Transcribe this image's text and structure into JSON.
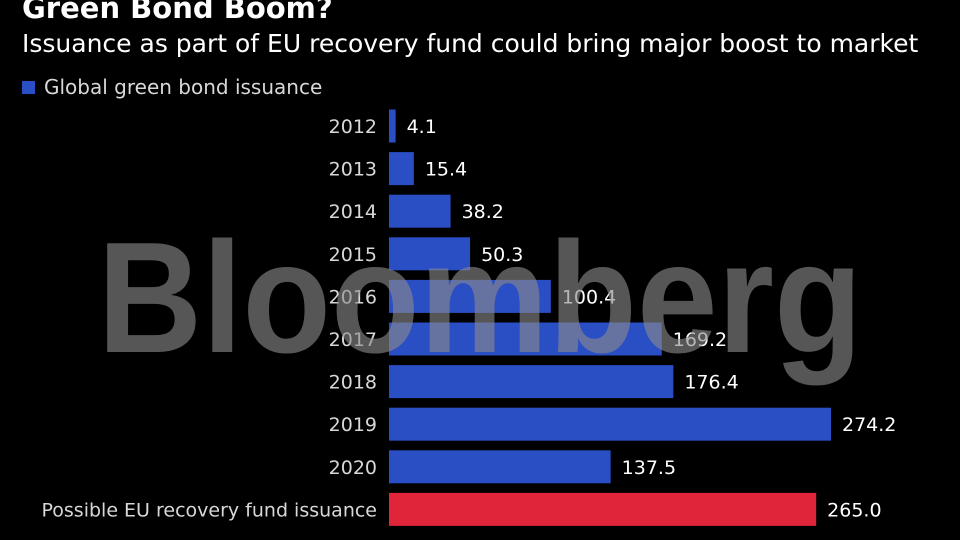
{
  "header": {
    "title": "Green Bond Boom?",
    "subtitle": "Issuance as part of EU recovery fund could bring major boost to market"
  },
  "legend": {
    "label": "Global green bond issuance",
    "color": "#2a4ec4"
  },
  "watermark": {
    "text": "Bloomberg"
  },
  "colors": {
    "background": "#000000",
    "bar": "#2a4ec4",
    "highlight_bar": "#e0243a",
    "text": "#ffffff"
  },
  "chart_data": {
    "type": "bar",
    "orientation": "horizontal",
    "title": "Green Bond Boom?",
    "subtitle": "Issuance as part of EU recovery fund could bring major boost to market",
    "categories": [
      "2012",
      "2013",
      "2014",
      "2015",
      "2016",
      "2017",
      "2018",
      "2019",
      "2020",
      "Possible EU recovery fund issuance"
    ],
    "series": [
      {
        "name": "Global green bond issuance",
        "values": [
          4.1,
          15.4,
          38.2,
          50.3,
          100.4,
          169.2,
          176.4,
          274.2,
          137.5,
          265.0
        ],
        "labels": [
          "4.1",
          "15.4",
          "38.2",
          "50.3",
          "100.4",
          "169.2",
          "176.4",
          "274.2",
          "137.5",
          "265.0"
        ]
      }
    ],
    "highlight_category": "Possible EU recovery fund issuance",
    "xlim": [
      0,
      280
    ],
    "grid": false,
    "legend_position": "top-left"
  }
}
